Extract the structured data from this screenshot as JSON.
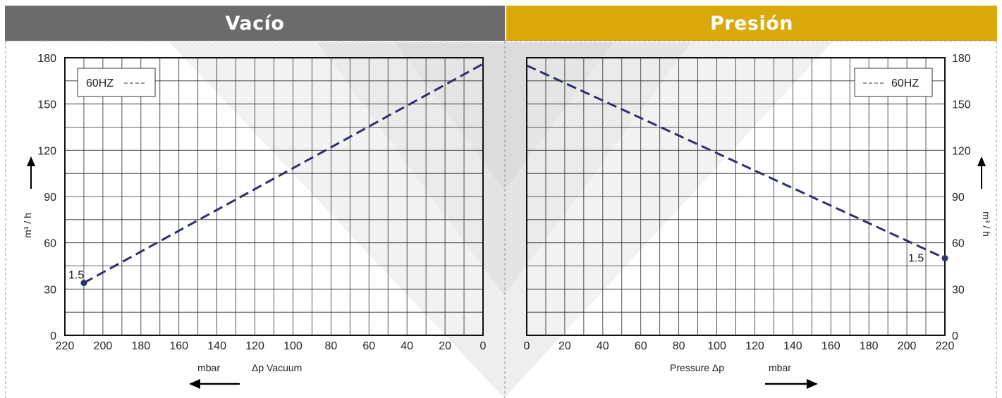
{
  "headers": {
    "left": "Vacío",
    "right": "Presión"
  },
  "colors": {
    "left_header": "#6b6b6b",
    "right_header": "#d9a809",
    "series": "#2e2f6e"
  },
  "chart_data": [
    {
      "type": "line",
      "title": "Vacío",
      "xlabel": "mbar   Δp  Vacuum",
      "x_unit": "mbar",
      "x_title": "Δp  Vacuum",
      "ylabel": "m³ / h",
      "xlim": [
        220,
        0
      ],
      "x_reversed": true,
      "ylim": [
        0,
        180
      ],
      "x_ticks": [
        220,
        200,
        180,
        160,
        140,
        120,
        100,
        80,
        60,
        40,
        20,
        0
      ],
      "y_ticks": [
        0,
        30,
        60,
        90,
        120,
        150,
        180
      ],
      "grid": true,
      "legend": "top-left",
      "arrow_direction": "left",
      "y_axis_side": "left",
      "series": [
        {
          "name": "60HZ",
          "style": "dashed",
          "x": [
            210,
            0
          ],
          "y": [
            34,
            176
          ],
          "endpoint_label": "1.5",
          "endpoint_index": 0
        }
      ]
    },
    {
      "type": "line",
      "title": "Presión",
      "xlabel": "Pressure  Δp   mbar",
      "x_unit": "mbar",
      "x_title": "Pressure  Δp",
      "ylabel": "m³ / h",
      "xlim": [
        0,
        220
      ],
      "x_reversed": false,
      "ylim": [
        0,
        180
      ],
      "x_ticks": [
        0,
        20,
        40,
        60,
        80,
        100,
        120,
        140,
        160,
        180,
        200,
        220
      ],
      "y_ticks": [
        0,
        30,
        60,
        90,
        120,
        150,
        180
      ],
      "grid": true,
      "legend": "top-right",
      "arrow_direction": "right",
      "y_axis_side": "right",
      "series": [
        {
          "name": "60HZ",
          "style": "dashed",
          "x": [
            0,
            220
          ],
          "y": [
            175,
            50
          ],
          "endpoint_label": "1.5",
          "endpoint_index": 1
        }
      ]
    }
  ]
}
